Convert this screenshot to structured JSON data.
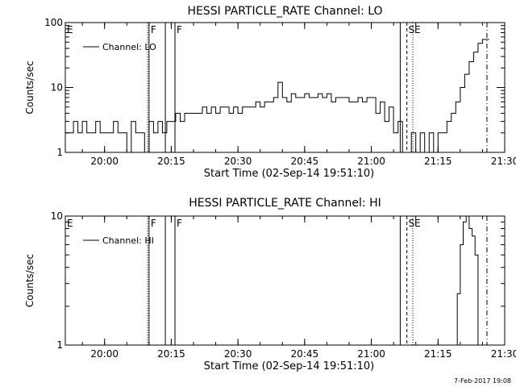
{
  "chart_data": [
    {
      "type": "line",
      "title": "HESSI PARTICLE_RATE Channel: LO",
      "xlabel": "Start Time (02-Sep-14 19:51:10)",
      "ylabel": "Counts/sec",
      "y_scale": "log",
      "ylim": [
        1,
        100
      ],
      "y_ticks": [
        "1",
        "10",
        "100"
      ],
      "xlim": [
        "19:51:10",
        "21:30:00"
      ],
      "x_ticks": [
        "20:00",
        "20:15",
        "20:30",
        "20:45",
        "21:00",
        "21:15",
        "21:30"
      ],
      "legend": {
        "entries": [
          "Channel: LO"
        ],
        "placement": "top-left"
      },
      "series": [
        {
          "name": "Channel: LO",
          "x": [
            "19:51:10",
            "19:52:00",
            "19:53:00",
            "19:54:00",
            "19:55:00",
            "19:56:00",
            "19:57:00",
            "19:58:00",
            "19:59:00",
            "20:00:00",
            "20:01:00",
            "20:02:00",
            "20:03:00",
            "20:04:00",
            "20:05:00",
            "20:06:00",
            "20:07:00",
            "20:08:00",
            "20:09:00",
            "20:10:00",
            "20:11:00",
            "20:12:00",
            "20:13:00",
            "20:14:00",
            "20:15:00",
            "20:16:00",
            "20:17:00",
            "20:18:00",
            "20:19:00",
            "20:20:00",
            "20:21:00",
            "20:22:00",
            "20:23:00",
            "20:24:00",
            "20:25:00",
            "20:26:00",
            "20:27:00",
            "20:28:00",
            "20:29:00",
            "20:30:00",
            "20:31:00",
            "20:32:00",
            "20:33:00",
            "20:34:00",
            "20:35:00",
            "20:36:00",
            "20:37:00",
            "20:38:00",
            "20:39:00",
            "20:40:00",
            "20:41:00",
            "20:42:00",
            "20:43:00",
            "20:44:00",
            "20:45:00",
            "20:46:00",
            "20:47:00",
            "20:48:00",
            "20:49:00",
            "20:50:00",
            "20:51:00",
            "20:52:00",
            "20:53:00",
            "20:54:00",
            "20:55:00",
            "20:56:00",
            "20:57:00",
            "20:58:00",
            "20:59:00",
            "21:00:00",
            "21:01:00",
            "21:02:00",
            "21:03:00",
            "21:04:00",
            "21:05:00",
            "21:06:00",
            "21:07:00",
            "21:08:00",
            "21:09:00",
            "21:10:00",
            "21:11:00",
            "21:12:00",
            "21:13:00",
            "21:14:00",
            "21:15:00",
            "21:16:00",
            "21:17:00",
            "21:18:00",
            "21:19:00",
            "21:20:00",
            "21:21:00",
            "21:22:00",
            "21:23:00",
            "21:24:00",
            "21:25:00",
            "21:26:00"
          ],
          "y": [
            2,
            2,
            3,
            2,
            3,
            2,
            2,
            3,
            2,
            2,
            2,
            3,
            2,
            2,
            1,
            3,
            2,
            2,
            1,
            3,
            2,
            3,
            2,
            3,
            3,
            4,
            3,
            4,
            4,
            4,
            4,
            5,
            4,
            5,
            4,
            5,
            5,
            4,
            5,
            4,
            5,
            5,
            5,
            6,
            5,
            6,
            6,
            7,
            12,
            7,
            6,
            8,
            7,
            7,
            8,
            7,
            7,
            8,
            7,
            8,
            6,
            7,
            7,
            7,
            6,
            6,
            7,
            6,
            7,
            7,
            4,
            6,
            3,
            5,
            2,
            3,
            1,
            1,
            2,
            1,
            2,
            1,
            2,
            1,
            2,
            2,
            3,
            4,
            6,
            10,
            16,
            25,
            35,
            48,
            55,
            55
          ]
        }
      ],
      "vertical_markers": [
        {
          "time": "20:09:40",
          "style": "dotted",
          "label": ""
        },
        {
          "time": "20:10:00",
          "style": "solid",
          "label": "F"
        },
        {
          "time": "20:13:40",
          "style": "solid",
          "label": ""
        },
        {
          "time": "20:15:50",
          "style": "solid",
          "label": "F"
        },
        {
          "time": "21:06:30",
          "style": "solid",
          "label": ""
        },
        {
          "time": "21:08:00",
          "style": "dashed",
          "label": "S"
        },
        {
          "time": "21:09:20",
          "style": "dotted",
          "label": "E"
        },
        {
          "time": "21:26:00",
          "style": "dash-dot",
          "label": ""
        }
      ],
      "corner_label": "E"
    },
    {
      "type": "line",
      "title": "HESSI PARTICLE_RATE Channel: HI",
      "xlabel": "Start Time (02-Sep-14 19:51:10)",
      "ylabel": "Counts/sec",
      "y_scale": "log",
      "ylim": [
        1,
        10
      ],
      "y_ticks": [
        "1",
        "10"
      ],
      "xlim": [
        "19:51:10",
        "21:30:00"
      ],
      "x_ticks": [
        "20:00",
        "20:15",
        "20:30",
        "20:45",
        "21:00",
        "21:15",
        "21:30"
      ],
      "legend": {
        "entries": [
          "Channel: HI"
        ],
        "placement": "top-left"
      },
      "series": [
        {
          "name": "Channel: HI",
          "x": [
            "21:18:40",
            "21:19:20",
            "21:20:00",
            "21:20:40",
            "21:21:20",
            "21:22:00",
            "21:22:40",
            "21:23:20",
            "21:24:00"
          ],
          "y": [
            1,
            2.5,
            6,
            9,
            10,
            8,
            7,
            5,
            1
          ]
        }
      ],
      "vertical_markers": [
        {
          "time": "20:09:40",
          "style": "dotted",
          "label": ""
        },
        {
          "time": "20:10:00",
          "style": "solid",
          "label": "F"
        },
        {
          "time": "20:13:40",
          "style": "solid",
          "label": ""
        },
        {
          "time": "20:15:50",
          "style": "solid",
          "label": "F"
        },
        {
          "time": "21:06:30",
          "style": "solid",
          "label": ""
        },
        {
          "time": "21:08:00",
          "style": "dashed",
          "label": "S"
        },
        {
          "time": "21:09:20",
          "style": "dotted",
          "label": "E"
        },
        {
          "time": "21:26:00",
          "style": "dash-dot",
          "label": ""
        }
      ],
      "corner_label": "E"
    }
  ],
  "footer": "7-Feb-2017 19:08"
}
